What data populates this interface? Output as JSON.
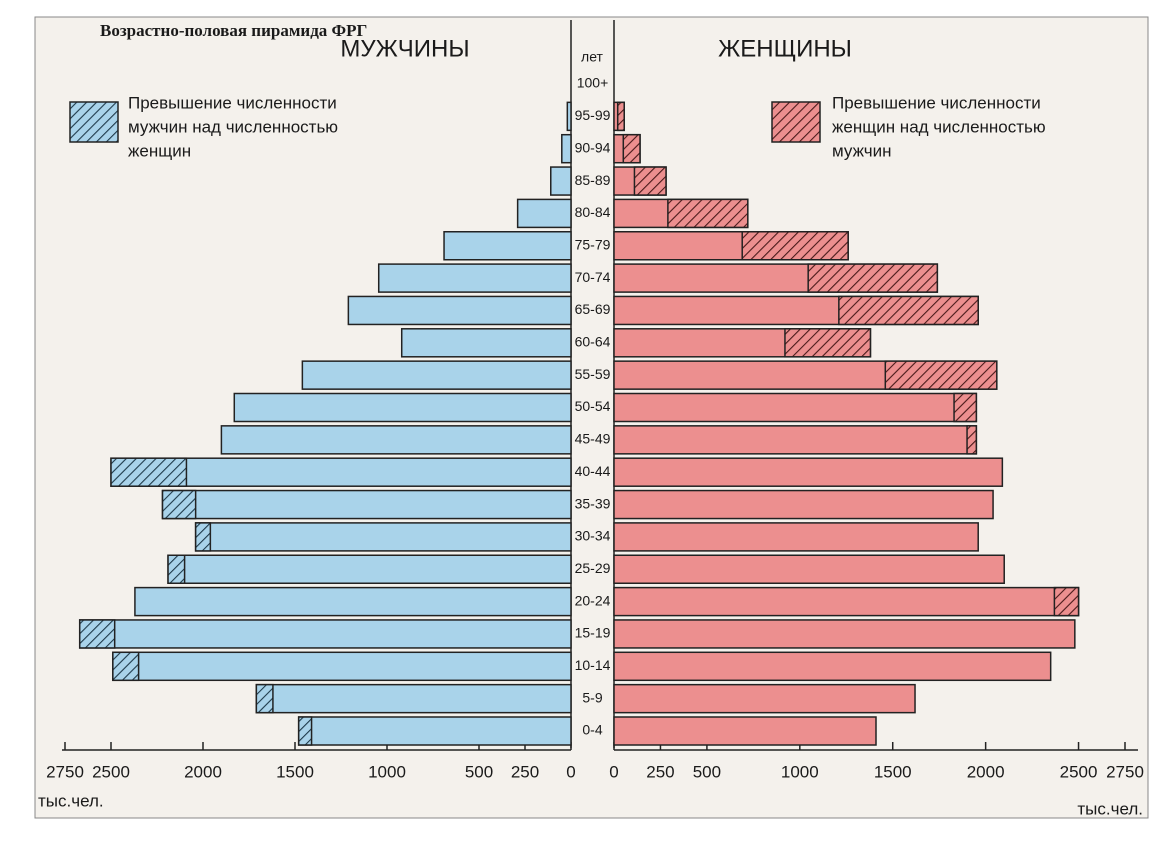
{
  "chart_data": {
    "type": "pyramid",
    "title": "Возрастно-половая пирамида ФРГ",
    "age_label": "лет",
    "xlabel": "тыс.чел.",
    "categories": [
      "0-4",
      "5-9",
      "10-14",
      "15-19",
      "20-24",
      "25-29",
      "30-34",
      "35-39",
      "40-44",
      "45-49",
      "50-54",
      "55-59",
      "60-64",
      "65-69",
      "70-74",
      "75-79",
      "80-84",
      "85-89",
      "90-94",
      "95-99",
      "100+"
    ],
    "series": [
      {
        "name": "МУЖЧИНЫ",
        "color": "#a9d3ea",
        "legend": [
          "Превышение численности",
          "мужчин над численностью",
          "женщин"
        ],
        "values": [
          1480,
          1710,
          2490,
          2670,
          2370,
          2190,
          2040,
          2220,
          2500,
          1900,
          1830,
          1460,
          920,
          1210,
          1045,
          690,
          290,
          110,
          50,
          20,
          0
        ]
      },
      {
        "name": "ЖЕНЩИНЫ",
        "color": "#ec8f8f",
        "legend": [
          "Превышение численности",
          "женщин над численностью",
          "мужчин"
        ],
        "values": [
          1410,
          1620,
          2350,
          2480,
          2500,
          2100,
          1960,
          2040,
          2090,
          1950,
          1950,
          2060,
          1380,
          1960,
          1740,
          1260,
          720,
          280,
          140,
          55,
          0
        ]
      }
    ],
    "xlim": [
      0,
      2750
    ],
    "xticks": [
      0,
      250,
      500,
      1000,
      1500,
      2000,
      2500,
      2750
    ]
  }
}
